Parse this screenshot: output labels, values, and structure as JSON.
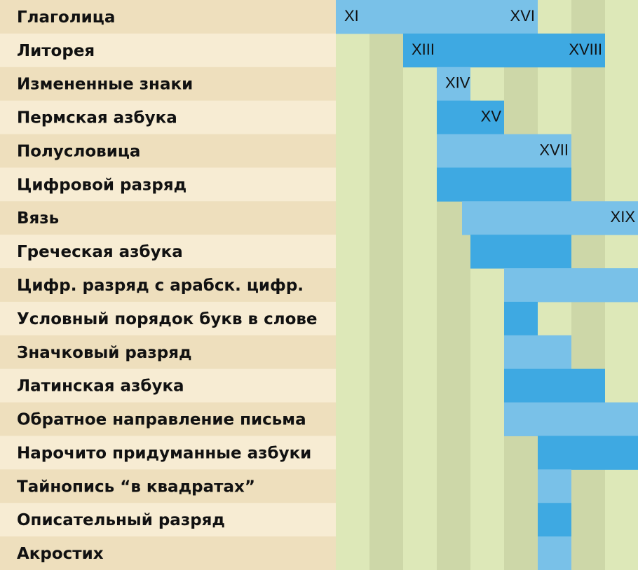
{
  "chart_data": {
    "type": "bar",
    "orientation": "horizontal",
    "subtype": "range-timeline",
    "title": "",
    "xlabel": "",
    "ylabel": "",
    "x_unit": "century",
    "xlim": [
      10.5,
      19.5
    ],
    "grid": true,
    "legend": "none",
    "colors": {
      "label_band_odd": "#eedfbd",
      "label_band_even": "#f7ecd3",
      "col_light": "#dde8b8",
      "col_dark": "#cdd7a8",
      "bar_light": "#79c1e8",
      "bar_dark": "#3ea9e2",
      "text": "#111111"
    },
    "rows": [
      {
        "label": "Глаголица",
        "start": 11,
        "end": 16,
        "start_label": "XI",
        "end_label": "XVI"
      },
      {
        "label": "Литорея",
        "start": 13,
        "end": 18,
        "start_label": "XIII",
        "end_label": "XVIII"
      },
      {
        "label": "Измененные знаки",
        "start": 14,
        "end": 14,
        "start_label": "XIV",
        "end_label": ""
      },
      {
        "label": "Пермская азбука",
        "start": 14,
        "end": 15,
        "start_label": "",
        "end_label": "XV"
      },
      {
        "label": "Полусловица",
        "start": 14,
        "end": 17,
        "start_label": "",
        "end_label": "XVII"
      },
      {
        "label": "Цифровой разряд",
        "start": 14,
        "end": 17,
        "start_label": "",
        "end_label": ""
      },
      {
        "label": "Вязь",
        "start": 14.75,
        "end": 19,
        "start_label": "",
        "end_label": "XIX"
      },
      {
        "label": "Греческая азбука",
        "start": 15,
        "end": 17,
        "start_label": "",
        "end_label": ""
      },
      {
        "label": "Цифр. разряд с арабск. цифр.",
        "start": 16,
        "end": 19,
        "start_label": "",
        "end_label": ""
      },
      {
        "label": "Условный порядок букв в слове",
        "start": 16,
        "end": 16,
        "start_label": "",
        "end_label": ""
      },
      {
        "label": "Значковый разряд",
        "start": 16,
        "end": 17,
        "start_label": "",
        "end_label": ""
      },
      {
        "label": "Латинская азбука",
        "start": 16,
        "end": 18,
        "start_label": "",
        "end_label": ""
      },
      {
        "label": "Обратное направление письма",
        "start": 16,
        "end": 19,
        "start_label": "",
        "end_label": ""
      },
      {
        "label": "Нарочито придуманные азбуки",
        "start": 17,
        "end": 19,
        "start_label": "",
        "end_label": ""
      },
      {
        "label": "Тайнопись “в квадратах”",
        "start": 17,
        "end": 17,
        "start_label": "",
        "end_label": ""
      },
      {
        "label": "Описательный разряд",
        "start": 17,
        "end": 17,
        "start_label": "",
        "end_label": ""
      },
      {
        "label": "Акростих",
        "start": 17,
        "end": 17,
        "start_label": "",
        "end_label": ""
      }
    ]
  }
}
